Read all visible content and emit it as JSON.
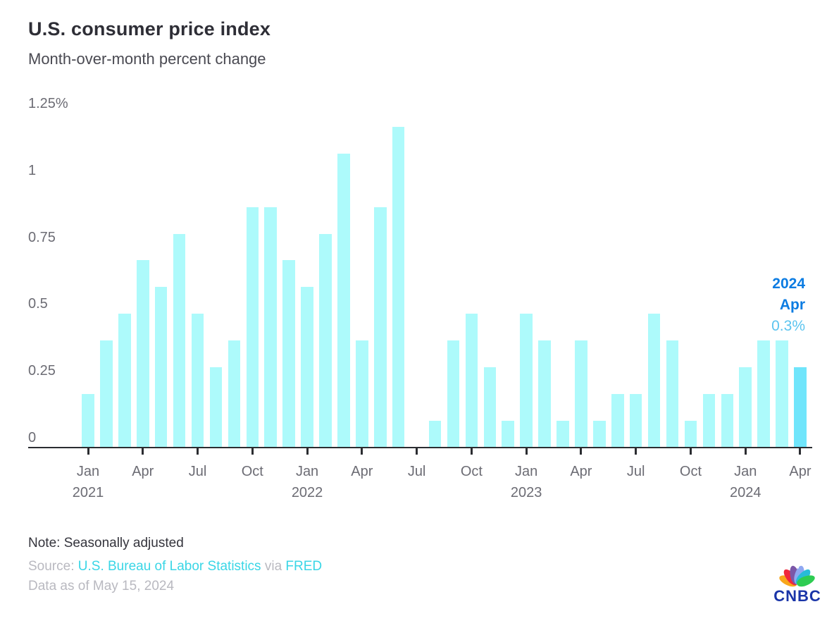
{
  "header": {
    "title": "U.S. consumer price index",
    "subtitle": "Month-over-month percent change"
  },
  "chart_data": {
    "type": "bar",
    "title": "U.S. consumer price index",
    "subtitle": "Month-over-month percent change",
    "unit": "percent",
    "ylim": [
      0,
      1.25
    ],
    "grid": false,
    "legend": false,
    "categories": [
      "Jan 2021",
      "Feb 2021",
      "Mar 2021",
      "Apr 2021",
      "May 2021",
      "Jun 2021",
      "Jul 2021",
      "Aug 2021",
      "Sep 2021",
      "Oct 2021",
      "Nov 2021",
      "Dec 2021",
      "Jan 2022",
      "Feb 2022",
      "Mar 2022",
      "Apr 2022",
      "May 2022",
      "Jun 2022",
      "Jul 2022",
      "Aug 2022",
      "Sep 2022",
      "Oct 2022",
      "Nov 2022",
      "Dec 2022",
      "Jan 2023",
      "Feb 2023",
      "Mar 2023",
      "Apr 2023",
      "May 2023",
      "Jun 2023",
      "Jul 2023",
      "Aug 2023",
      "Sep 2023",
      "Oct 2023",
      "Nov 2023",
      "Dec 2023",
      "Jan 2024",
      "Feb 2024",
      "Mar 2024",
      "Apr 2024"
    ],
    "values": [
      0.2,
      0.4,
      0.5,
      0.7,
      0.6,
      0.8,
      0.5,
      0.3,
      0.4,
      0.9,
      0.9,
      0.7,
      0.6,
      0.8,
      1.1,
      0.4,
      0.9,
      1.2,
      0.0,
      0.1,
      0.4,
      0.5,
      0.3,
      0.1,
      0.5,
      0.4,
      0.1,
      0.4,
      0.1,
      0.2,
      0.2,
      0.5,
      0.4,
      0.1,
      0.2,
      0.2,
      0.3,
      0.4,
      0.4,
      0.3
    ],
    "highlight_index": 39,
    "yticks": [
      {
        "v": 1.25,
        "label": "1.25%"
      },
      {
        "v": 1.0,
        "label": "1"
      },
      {
        "v": 0.75,
        "label": "0.75"
      },
      {
        "v": 0.5,
        "label": "0.5"
      },
      {
        "v": 0.25,
        "label": "0.25"
      },
      {
        "v": 0.0,
        "label": "0"
      }
    ],
    "xticks": [
      {
        "m": 0,
        "label": "Jan",
        "year": "2021"
      },
      {
        "m": 3,
        "label": "Apr"
      },
      {
        "m": 6,
        "label": "Jul"
      },
      {
        "m": 9,
        "label": "Oct"
      },
      {
        "m": 12,
        "label": "Jan",
        "year": "2022"
      },
      {
        "m": 15,
        "label": "Apr"
      },
      {
        "m": 18,
        "label": "Jul"
      },
      {
        "m": 21,
        "label": "Oct"
      },
      {
        "m": 24,
        "label": "Jan",
        "year": "2023"
      },
      {
        "m": 27,
        "label": "Apr"
      },
      {
        "m": 30,
        "label": "Jul"
      },
      {
        "m": 33,
        "label": "Oct"
      },
      {
        "m": 36,
        "label": "Jan",
        "year": "2024"
      },
      {
        "m": 39,
        "label": "Apr"
      }
    ],
    "colors": {
      "bar": "#ADFAFB",
      "highlight": "#70E5FB"
    },
    "annotation": {
      "year": "2024",
      "month": "Apr",
      "value": "0.3%"
    }
  },
  "footer": {
    "note": "Note: Seasonally adjusted",
    "source_prefix": "Source:",
    "source_link_1": "U.S. Bureau of Labor Statistics",
    "source_mid": "via",
    "source_link_2": "FRED",
    "data_as_of": "Data as of May 15, 2024"
  },
  "logo": {
    "wordmark": "CNBC",
    "feather_colors": [
      "#F8A71B",
      "#F0283C",
      "#7B57A8",
      "#8FA8F2",
      "#27BCD8",
      "#2ECC52"
    ]
  }
}
